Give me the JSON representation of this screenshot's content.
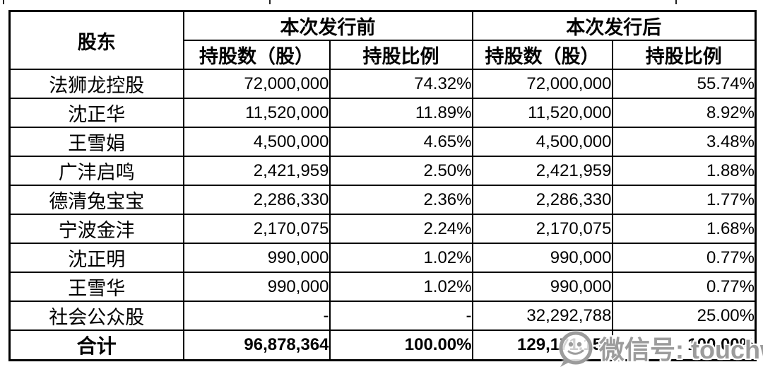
{
  "page": {
    "background": "#ffffff",
    "border_color": "#000000"
  },
  "table": {
    "col_shareholder": "股东",
    "group_before": "本次发行前",
    "group_after": "本次发行后",
    "col_shares": "持股数（股）",
    "col_ratio": "持股比例",
    "rows": [
      {
        "name": "法狮龙控股",
        "shares_before": "72,000,000",
        "ratio_before": "74.32%",
        "shares_after": "72,000,000",
        "ratio_after": "55.74%"
      },
      {
        "name": "沈正华",
        "shares_before": "11,520,000",
        "ratio_before": "11.89%",
        "shares_after": "11,520,000",
        "ratio_after": "8.92%"
      },
      {
        "name": "王雪娟",
        "shares_before": "4,500,000",
        "ratio_before": "4.65%",
        "shares_after": "4,500,000",
        "ratio_after": "3.48%"
      },
      {
        "name": "广沣启鸣",
        "shares_before": "2,421,959",
        "ratio_before": "2.50%",
        "shares_after": "2,421,959",
        "ratio_after": "1.88%"
      },
      {
        "name": "德清兔宝宝",
        "shares_before": "2,286,330",
        "ratio_before": "2.36%",
        "shares_after": "2,286,330",
        "ratio_after": "1.77%"
      },
      {
        "name": "宁波金沣",
        "shares_before": "2,170,075",
        "ratio_before": "2.24%",
        "shares_after": "2,170,075",
        "ratio_after": "1.68%"
      },
      {
        "name": "沈正明",
        "shares_before": "990,000",
        "ratio_before": "1.02%",
        "shares_after": "990,000",
        "ratio_after": "0.77%"
      },
      {
        "name": "王雪华",
        "shares_before": "990,000",
        "ratio_before": "1.02%",
        "shares_after": "990,000",
        "ratio_after": "0.77%"
      },
      {
        "name": "社会公众股",
        "shares_before": "-",
        "ratio_before": "-",
        "shares_after": "32,292,788",
        "ratio_after": "25.00%"
      }
    ],
    "total": {
      "name": "合计",
      "shares_before": "96,878,364",
      "ratio_before": "100.00%",
      "shares_after": "129,171,152",
      "ratio_after": "100.00%"
    }
  },
  "watermark": {
    "icon": "wechat-bubble-icon",
    "text": "微信号: touchweb",
    "color": "#9c9c9c"
  }
}
